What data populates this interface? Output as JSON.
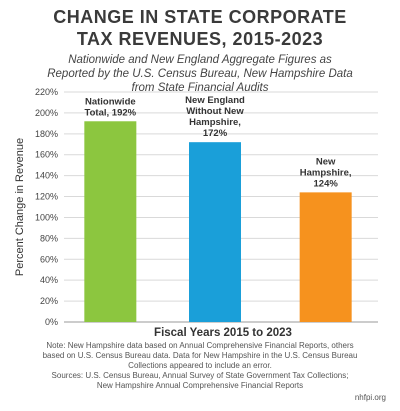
{
  "chart_data": {
    "type": "bar",
    "title_lines": [
      "CHANGE IN STATE CORPORATE",
      "TAX REVENUES, 2015-2023"
    ],
    "subtitle_lines": [
      "Nationwide and New England Aggregate Figures as",
      "Reported by the U.S. Census Bureau, New Hampshire Data",
      "from State Financial Audits"
    ],
    "ylabel": "Percent Change in Revenue",
    "xlabel": "Fiscal Years 2015 to 2023",
    "ylim": [
      0,
      220
    ],
    "yticks": [
      "0%",
      "20%",
      "40%",
      "60%",
      "80%",
      "100%",
      "120%",
      "140%",
      "160%",
      "180%",
      "200%",
      "220%"
    ],
    "grid": true,
    "categories": [
      [
        "Nationwide",
        "Total, 192%"
      ],
      [
        "New England",
        "Without New",
        "Hampshire,",
        "172%"
      ],
      [
        "New",
        "Hampshire,",
        "124%"
      ]
    ],
    "values": [
      192,
      172,
      124
    ],
    "colors": [
      "#8cc63f",
      "#1a9fd9",
      "#f6921e"
    ]
  },
  "footer": {
    "note_lines": [
      "Note: New Hampshire data based on Annual Comprehensive Financial Reports, others",
      "based on U.S. Census Bureau data. Data for New Hampshire in the U.S. Census Bureau",
      "Collections appeared to include an error.",
      "Sources: U.S. Census Bureau, Annual Survey of State Government Tax Collections;",
      "New Hampshire Annual Comprehensive Financial Reports"
    ],
    "credit": "nhfpi.org"
  }
}
